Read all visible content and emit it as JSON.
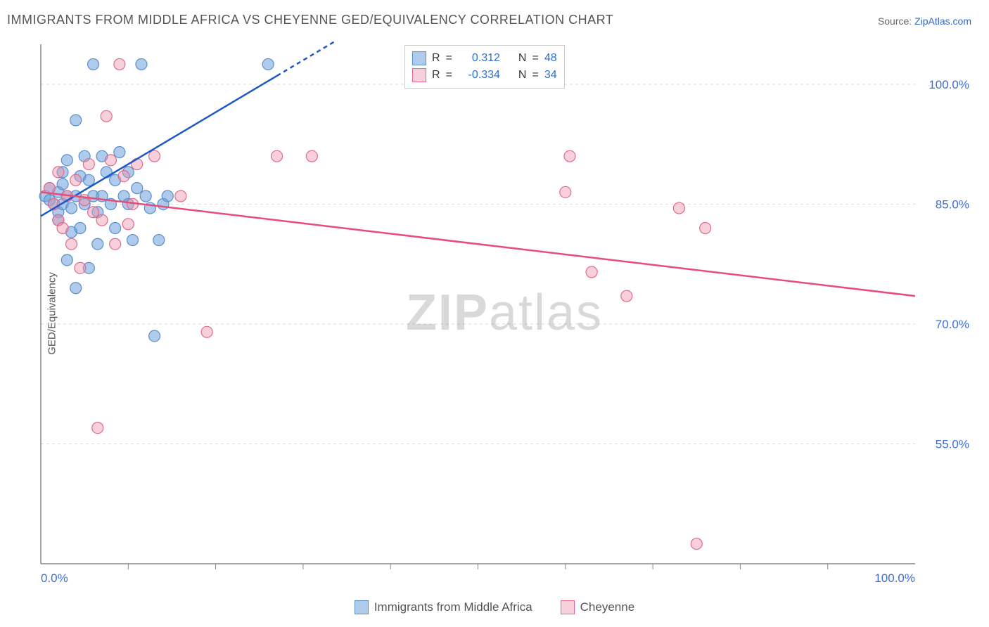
{
  "title": "IMMIGRANTS FROM MIDDLE AFRICA VS CHEYENNE GED/EQUIVALENCY CORRELATION CHART",
  "source_prefix": "Source: ",
  "source_link": "ZipAtlas.com",
  "y_axis_label": "GED/Equivalency",
  "watermark_bold": "ZIP",
  "watermark_light": "atlas",
  "chart": {
    "type": "scatter+regression",
    "plot_background": "#ffffff",
    "grid_color": "#d9d9d9",
    "axis_color": "#888888",
    "x_domain": [
      0,
      100
    ],
    "y_domain": [
      40,
      105
    ],
    "x_ticks_minor": [
      10,
      20,
      30,
      40,
      50,
      60,
      70,
      80,
      90
    ],
    "x_ticks_major_labels": [
      {
        "v": 0,
        "label": "0.0%"
      },
      {
        "v": 100,
        "label": "100.0%"
      }
    ],
    "y_gridlines": [
      55,
      70,
      85,
      100
    ],
    "y_tick_labels": [
      {
        "v": 55,
        "label": "55.0%"
      },
      {
        "v": 70,
        "label": "70.0%"
      },
      {
        "v": 85,
        "label": "85.0%"
      },
      {
        "v": 100,
        "label": "100.0%"
      }
    ],
    "series": [
      {
        "id": "immigrants",
        "label": "Immigrants from Middle Africa",
        "point_fill": "rgba(108,160,220,0.55)",
        "point_stroke": "#5a8fca",
        "line_color": "#1d58c7",
        "marker_radius": 8,
        "line_width": 2.5,
        "regression": {
          "x1": 0,
          "y1": 83.5,
          "x2": 30,
          "y2": 103,
          "dashed_after_x": 27
        },
        "R_value": "0.312",
        "N_value": "48",
        "points": [
          [
            0.5,
            86
          ],
          [
            1,
            87
          ],
          [
            1,
            85.5
          ],
          [
            1.5,
            85
          ],
          [
            2,
            86.5
          ],
          [
            2,
            84
          ],
          [
            2,
            83
          ],
          [
            2.5,
            87.5
          ],
          [
            2.5,
            85
          ],
          [
            2.5,
            89
          ],
          [
            3,
            78
          ],
          [
            3,
            86
          ],
          [
            3,
            90.5
          ],
          [
            3.5,
            81.5
          ],
          [
            3.5,
            84.5
          ],
          [
            4,
            95.5
          ],
          [
            4,
            86
          ],
          [
            4,
            74.5
          ],
          [
            4.5,
            88.5
          ],
          [
            4.5,
            82
          ],
          [
            5,
            91
          ],
          [
            5,
            85
          ],
          [
            5.5,
            77
          ],
          [
            5.5,
            88
          ],
          [
            6,
            86
          ],
          [
            6,
            102.5
          ],
          [
            6.5,
            80
          ],
          [
            6.5,
            84
          ],
          [
            7,
            91
          ],
          [
            7,
            86
          ],
          [
            7.5,
            89
          ],
          [
            8,
            85
          ],
          [
            8.5,
            88
          ],
          [
            8.5,
            82
          ],
          [
            9,
            91.5
          ],
          [
            9.5,
            86
          ],
          [
            10,
            85
          ],
          [
            10,
            89
          ],
          [
            10.5,
            80.5
          ],
          [
            11,
            87
          ],
          [
            11.5,
            102.5
          ],
          [
            12,
            86
          ],
          [
            12.5,
            84.5
          ],
          [
            13,
            68.5
          ],
          [
            13.5,
            80.5
          ],
          [
            14,
            85
          ],
          [
            14.5,
            86
          ],
          [
            26,
            102.5
          ]
        ]
      },
      {
        "id": "cheyenne",
        "label": "Cheyenne",
        "point_fill": "rgba(240,150,175,0.45)",
        "point_stroke": "#e06a8c",
        "line_color": "#e84c7a",
        "marker_radius": 8,
        "line_width": 2.5,
        "regression": {
          "x1": 0,
          "y1": 86.5,
          "x2": 100,
          "y2": 73.5
        },
        "R_value": "-0.334",
        "N_value": "34",
        "points": [
          [
            1,
            87
          ],
          [
            1.5,
            85
          ],
          [
            2,
            83
          ],
          [
            2,
            89
          ],
          [
            2.5,
            82
          ],
          [
            3,
            86
          ],
          [
            3.5,
            80
          ],
          [
            4,
            88
          ],
          [
            4.5,
            77
          ],
          [
            5,
            85.5
          ],
          [
            5.5,
            90
          ],
          [
            6,
            84
          ],
          [
            6.5,
            57
          ],
          [
            7,
            83
          ],
          [
            7.5,
            96
          ],
          [
            8,
            90.5
          ],
          [
            8.5,
            80
          ],
          [
            9,
            102.5
          ],
          [
            9.5,
            88.5
          ],
          [
            10,
            82.5
          ],
          [
            10.5,
            85
          ],
          [
            11,
            90
          ],
          [
            13,
            91
          ],
          [
            16,
            86
          ],
          [
            19,
            69
          ],
          [
            27,
            91
          ],
          [
            31,
            91
          ],
          [
            60,
            86.5
          ],
          [
            63,
            76.5
          ],
          [
            67,
            73.5
          ],
          [
            73,
            84.5
          ],
          [
            75,
            42.5
          ],
          [
            76,
            82
          ],
          [
            60.5,
            91
          ]
        ]
      }
    ]
  },
  "top_legend": {
    "R_label": "R",
    "N_label": "N",
    "equals": "="
  },
  "bottom_legend": {
    "items": [
      "immigrants",
      "cheyenne"
    ]
  },
  "colors": {
    "tick_label": "#3b6fd8",
    "text_gray": "#555555"
  }
}
